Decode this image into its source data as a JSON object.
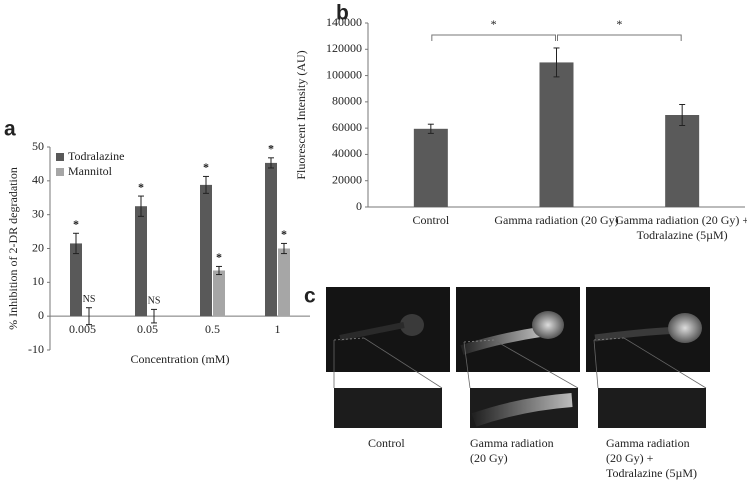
{
  "chart_data": [
    {
      "type": "bar",
      "panel": "a",
      "ylabel": "% Inhibition of 2-DR degradation",
      "xlabel": "Concentration (mM)",
      "categories": [
        "0.005",
        "0.05",
        "0.5",
        "1"
      ],
      "series": [
        {
          "name": "Todralazine",
          "color": "#595959",
          "values": [
            21.5,
            32.5,
            38.8,
            45.3
          ],
          "errors": [
            3,
            3,
            2.5,
            1.5
          ],
          "markers": [
            "*",
            "*",
            "*",
            "*"
          ]
        },
        {
          "name": "Mannitol",
          "color": "#a6a6a6",
          "values": [
            0,
            0,
            13.5,
            20
          ],
          "errors": [
            2.5,
            2,
            1.2,
            1.5
          ],
          "markers": [
            "NS",
            "NS",
            "*",
            "*"
          ]
        }
      ],
      "ylim": [
        -10,
        50
      ],
      "yticks": [
        -10,
        0,
        10,
        20,
        30,
        40,
        50
      ],
      "legend": "top-left"
    },
    {
      "type": "bar",
      "panel": "b",
      "ylabel": "Fluorescent Intensity (AU)",
      "categories": [
        "Control",
        "Gamma radiation (20 Gy)",
        "Gamma radiation (20 Gy) + Todralazine (5µM)"
      ],
      "values": [
        59500,
        110000,
        70000
      ],
      "errors": [
        3500,
        11000,
        8000
      ],
      "color": "#5a5a5a",
      "brackets": [
        {
          "between": [
            0,
            1
          ],
          "label": "*"
        },
        {
          "between": [
            1,
            2
          ],
          "label": "*"
        }
      ],
      "ylim": [
        0,
        140000
      ],
      "yticks": [
        0,
        20000,
        40000,
        60000,
        80000,
        100000,
        120000,
        140000
      ]
    }
  ],
  "figure_c": {
    "panel": "c",
    "captions": [
      "Control",
      "Gamma radiation (20 Gy)",
      "Gamma radiation (20 Gy) + Todralazine (5µM)"
    ]
  }
}
